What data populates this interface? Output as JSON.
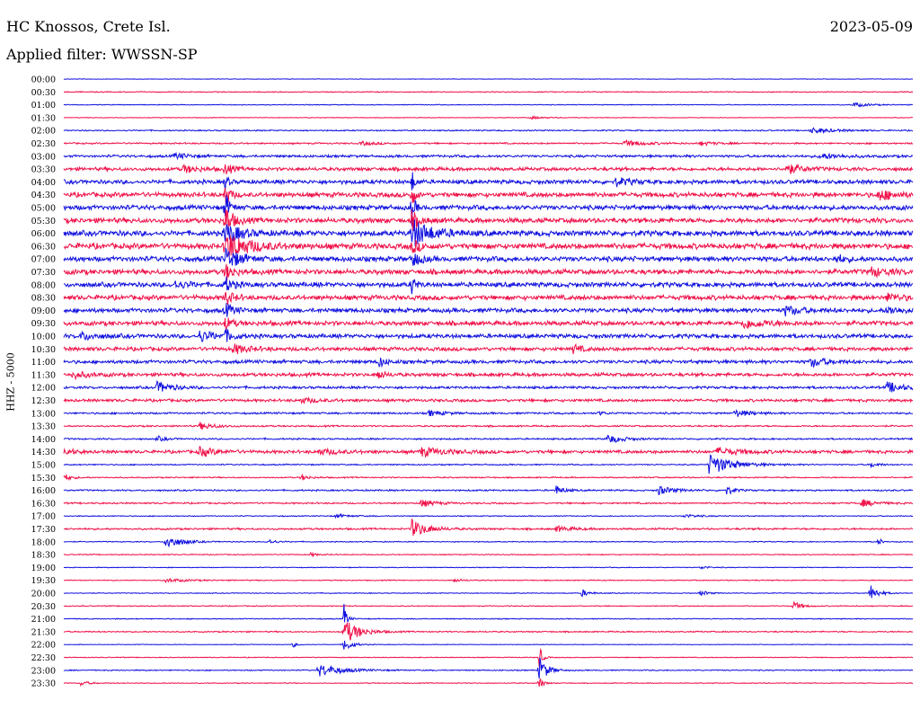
{
  "header": {
    "station": "HC Knossos, Crete Isl.",
    "filter": "Applied filter: WWSSN-SP",
    "date": "2023-05-09"
  },
  "colors": {
    "blue": "#1010e0",
    "red": "#f01048"
  },
  "chart_data": {
    "type": "line",
    "ylabel": "HHZ - 5000",
    "rows": [
      {
        "label": "00:00",
        "color": "blue",
        "noise": 0.3,
        "events": []
      },
      {
        "label": "00:30",
        "color": "red",
        "noise": 0.6,
        "events": []
      },
      {
        "label": "01:00",
        "color": "blue",
        "noise": 0.5,
        "events": [
          [
            0.93,
            2.5,
            0.02
          ]
        ]
      },
      {
        "label": "01:30",
        "color": "red",
        "noise": 0.4,
        "events": [
          [
            0.55,
            1.5,
            0.02
          ]
        ]
      },
      {
        "label": "02:00",
        "color": "blue",
        "noise": 0.8,
        "events": [
          [
            0.88,
            3,
            0.03
          ]
        ]
      },
      {
        "label": "02:30",
        "color": "red",
        "noise": 1.0,
        "events": [
          [
            0.35,
            2,
            0.02
          ],
          [
            0.66,
            3,
            0.03
          ],
          [
            0.75,
            2,
            0.02
          ]
        ]
      },
      {
        "label": "03:00",
        "color": "blue",
        "noise": 1.6,
        "events": [
          [
            0.13,
            3,
            0.02
          ],
          [
            0.89,
            3,
            0.03
          ]
        ]
      },
      {
        "label": "03:30",
        "color": "red",
        "noise": 2.2,
        "events": [
          [
            0.14,
            4,
            0.02
          ],
          [
            0.19,
            6,
            0.01
          ],
          [
            0.85,
            6,
            0.02
          ]
        ]
      },
      {
        "label": "04:00",
        "color": "blue",
        "noise": 2.6,
        "events": [
          [
            0.19,
            10,
            0.004
          ],
          [
            0.41,
            12,
            0.004
          ],
          [
            0.65,
            4,
            0.02
          ]
        ]
      },
      {
        "label": "04:30",
        "color": "red",
        "noise": 3.0,
        "events": [
          [
            0.19,
            14,
            0.006
          ],
          [
            0.41,
            14,
            0.004
          ],
          [
            0.96,
            6,
            0.02
          ]
        ]
      },
      {
        "label": "05:00",
        "color": "blue",
        "noise": 3.0,
        "events": [
          [
            0.19,
            16,
            0.006
          ],
          [
            0.41,
            18,
            0.004
          ]
        ]
      },
      {
        "label": "05:30",
        "color": "red",
        "noise": 3.2,
        "events": [
          [
            0.19,
            16,
            0.01
          ],
          [
            0.41,
            10,
            0.01
          ]
        ]
      },
      {
        "label": "06:00",
        "color": "blue",
        "noise": 3.4,
        "events": [
          [
            0.19,
            12,
            0.02
          ],
          [
            0.41,
            16,
            0.025
          ]
        ]
      },
      {
        "label": "06:30",
        "color": "red",
        "noise": 3.6,
        "events": [
          [
            0.19,
            16,
            0.03
          ],
          [
            0.41,
            8,
            0.01
          ]
        ]
      },
      {
        "label": "07:00",
        "color": "blue",
        "noise": 3.2,
        "events": [
          [
            0.19,
            12,
            0.02
          ],
          [
            0.41,
            10,
            0.01
          ],
          [
            0.91,
            5,
            0.01
          ]
        ]
      },
      {
        "label": "07:30",
        "color": "red",
        "noise": 3.2,
        "events": [
          [
            0.19,
            10,
            0.01
          ],
          [
            0.95,
            5,
            0.02
          ]
        ]
      },
      {
        "label": "08:00",
        "color": "blue",
        "noise": 3.0,
        "events": [
          [
            0.19,
            8,
            0.01
          ],
          [
            0.41,
            10,
            0.005
          ],
          [
            0.13,
            4,
            0.02
          ]
        ]
      },
      {
        "label": "08:30",
        "color": "red",
        "noise": 3.0,
        "events": [
          [
            0.19,
            8,
            0.01
          ],
          [
            0.97,
            4,
            0.02
          ]
        ]
      },
      {
        "label": "09:00",
        "color": "blue",
        "noise": 2.8,
        "events": [
          [
            0.19,
            8,
            0.01
          ],
          [
            0.85,
            5,
            0.02
          ],
          [
            0.97,
            4,
            0.02
          ]
        ]
      },
      {
        "label": "09:30",
        "color": "red",
        "noise": 2.8,
        "events": [
          [
            0.19,
            7,
            0.01
          ],
          [
            0.8,
            5,
            0.03
          ]
        ]
      },
      {
        "label": "10:00",
        "color": "blue",
        "noise": 2.6,
        "events": [
          [
            0.16,
            6,
            0.02
          ],
          [
            0.19,
            6,
            0.01
          ],
          [
            0.02,
            4,
            0.02
          ]
        ]
      },
      {
        "label": "10:30",
        "color": "red",
        "noise": 2.4,
        "events": [
          [
            0.2,
            5,
            0.02
          ],
          [
            0.6,
            5,
            0.01
          ]
        ]
      },
      {
        "label": "11:00",
        "color": "blue",
        "noise": 2.2,
        "events": [
          [
            0.37,
            6,
            0.01
          ],
          [
            0.88,
            5,
            0.02
          ]
        ]
      },
      {
        "label": "11:30",
        "color": "red",
        "noise": 2.2,
        "events": [
          [
            0.01,
            4,
            0.02
          ],
          [
            0.37,
            5,
            0.01
          ]
        ]
      },
      {
        "label": "12:00",
        "color": "blue",
        "noise": 1.6,
        "events": [
          [
            0.11,
            6,
            0.02
          ],
          [
            0.97,
            6,
            0.02
          ]
        ]
      },
      {
        "label": "12:30",
        "color": "red",
        "noise": 1.8,
        "events": [
          [
            0.28,
            3,
            0.02
          ]
        ]
      },
      {
        "label": "13:00",
        "color": "blue",
        "noise": 1.2,
        "events": [
          [
            0.43,
            3,
            0.02
          ],
          [
            0.79,
            4,
            0.02
          ],
          [
            0.63,
            2,
            0.01
          ]
        ]
      },
      {
        "label": "13:30",
        "color": "red",
        "noise": 1.0,
        "events": [
          [
            0.16,
            4,
            0.02
          ]
        ]
      },
      {
        "label": "14:00",
        "color": "blue",
        "noise": 1.0,
        "events": [
          [
            0.64,
            5,
            0.02
          ],
          [
            0.11,
            3,
            0.01
          ]
        ]
      },
      {
        "label": "14:30",
        "color": "red",
        "noise": 2.0,
        "events": [
          [
            0.0,
            5,
            0.01
          ],
          [
            0.16,
            5,
            0.02
          ],
          [
            0.3,
            3,
            0.03
          ],
          [
            0.42,
            5,
            0.03
          ],
          [
            0.77,
            4,
            0.03
          ]
        ]
      },
      {
        "label": "15:00",
        "color": "blue",
        "noise": 0.8,
        "events": [
          [
            0.76,
            12,
            0.03
          ],
          [
            0.95,
            3,
            0.01
          ]
        ]
      },
      {
        "label": "15:30",
        "color": "red",
        "noise": 0.8,
        "events": [
          [
            0.0,
            4,
            0.01
          ],
          [
            0.28,
            3,
            0.01
          ]
        ]
      },
      {
        "label": "16:00",
        "color": "blue",
        "noise": 1.0,
        "events": [
          [
            0.58,
            5,
            0.01
          ],
          [
            0.7,
            5,
            0.02
          ],
          [
            0.78,
            5,
            0.01
          ]
        ]
      },
      {
        "label": "16:30",
        "color": "red",
        "noise": 1.0,
        "events": [
          [
            0.42,
            4,
            0.02
          ],
          [
            0.94,
            4,
            0.02
          ]
        ]
      },
      {
        "label": "17:00",
        "color": "blue",
        "noise": 0.6,
        "events": [
          [
            0.32,
            2,
            0.02
          ],
          [
            0.73,
            2,
            0.02
          ]
        ]
      },
      {
        "label": "17:30",
        "color": "red",
        "noise": 1.2,
        "events": [
          [
            0.41,
            10,
            0.02
          ],
          [
            0.58,
            3,
            0.02
          ]
        ]
      },
      {
        "label": "18:00",
        "color": "blue",
        "noise": 0.6,
        "events": [
          [
            0.12,
            8,
            0.02
          ],
          [
            0.24,
            3,
            0.01
          ],
          [
            0.96,
            6,
            0.003
          ]
        ]
      },
      {
        "label": "18:30",
        "color": "red",
        "noise": 0.6,
        "events": [
          [
            0.29,
            2,
            0.01
          ]
        ]
      },
      {
        "label": "19:00",
        "color": "blue",
        "noise": 0.5,
        "events": [
          [
            0.75,
            2,
            0.01
          ]
        ]
      },
      {
        "label": "19:30",
        "color": "red",
        "noise": 0.6,
        "events": [
          [
            0.12,
            2,
            0.03
          ],
          [
            0.46,
            2,
            0.01
          ]
        ]
      },
      {
        "label": "20:00",
        "color": "blue",
        "noise": 0.5,
        "events": [
          [
            0.61,
            4,
            0.01
          ],
          [
            0.75,
            3,
            0.01
          ],
          [
            0.95,
            10,
            0.01
          ]
        ]
      },
      {
        "label": "20:30",
        "color": "red",
        "noise": 0.6,
        "events": [
          [
            0.86,
            5,
            0.01
          ]
        ]
      },
      {
        "label": "21:00",
        "color": "blue",
        "noise": 0.6,
        "events": [
          [
            0.33,
            16,
            0.004
          ]
        ]
      },
      {
        "label": "21:30",
        "color": "red",
        "noise": 0.8,
        "events": [
          [
            0.33,
            14,
            0.02
          ]
        ]
      },
      {
        "label": "22:00",
        "color": "blue",
        "noise": 0.4,
        "events": [
          [
            0.27,
            3,
            0.005
          ],
          [
            0.33,
            8,
            0.01
          ]
        ]
      },
      {
        "label": "22:30",
        "color": "red",
        "noise": 0.5,
        "events": [
          [
            0.56,
            14,
            0.004
          ]
        ]
      },
      {
        "label": "23:00",
        "color": "blue",
        "noise": 0.7,
        "events": [
          [
            0.3,
            7,
            0.03
          ],
          [
            0.56,
            16,
            0.01
          ]
        ]
      },
      {
        "label": "23:30",
        "color": "red",
        "noise": 0.5,
        "events": [
          [
            0.02,
            3,
            0.01
          ],
          [
            0.56,
            7,
            0.005
          ]
        ]
      }
    ]
  }
}
